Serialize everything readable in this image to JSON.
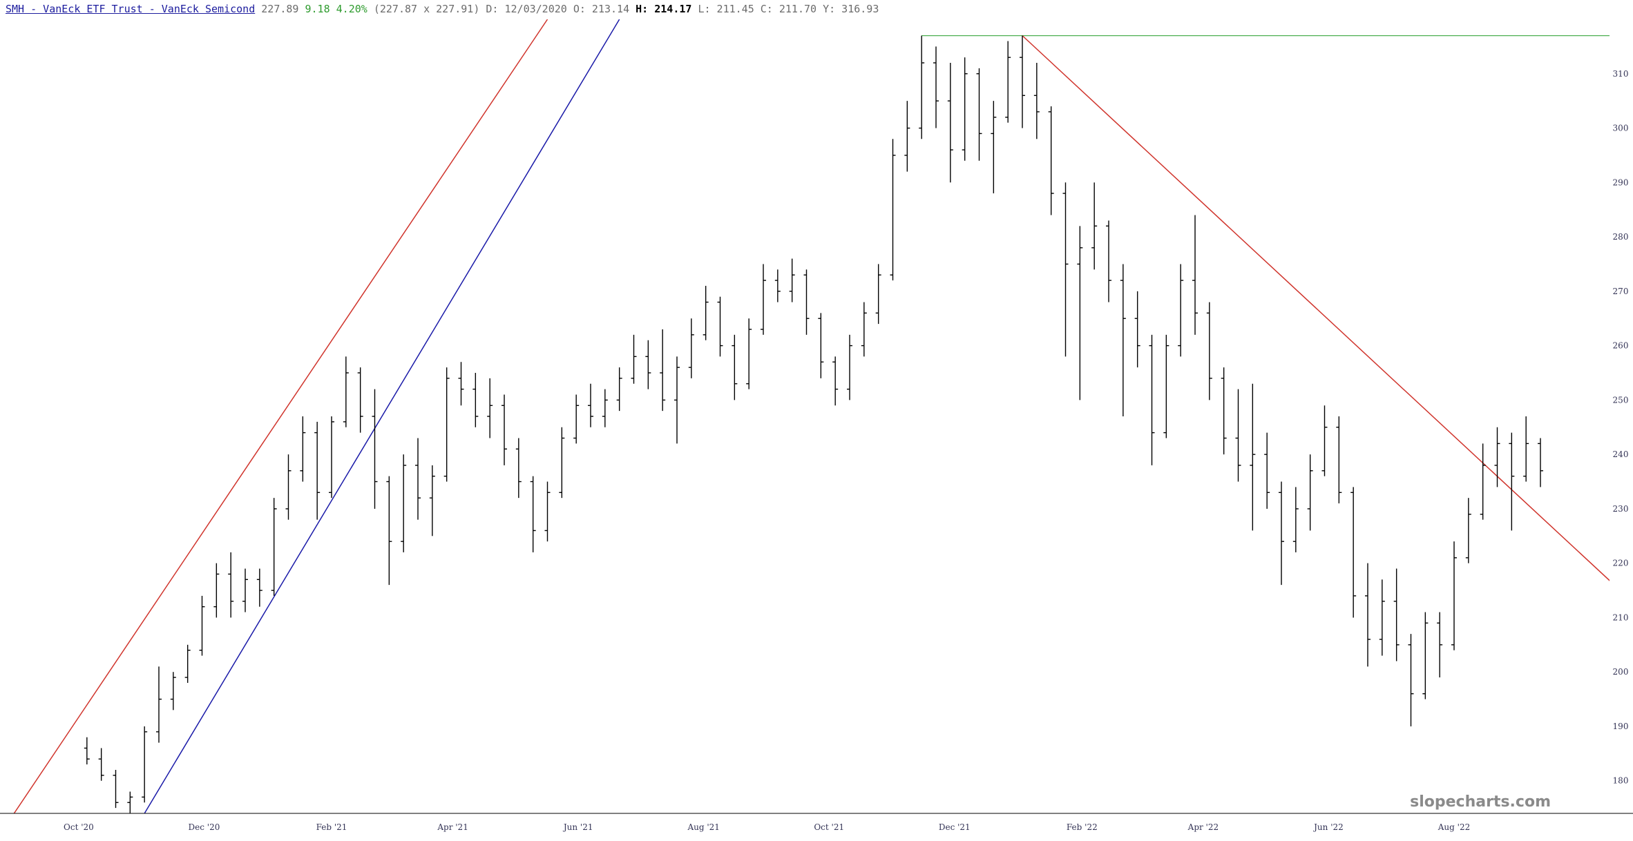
{
  "header": {
    "symbol_link": "SMH - VanEck ETF Trust - VanEck Semicond",
    "last": "227.89",
    "change": "9.18",
    "change_pct": "4.20%",
    "bid_ask": "(227.87 x 227.91)",
    "date": "D: 12/03/2020",
    "open": "O: 213.14",
    "high_label": "H:",
    "high_value": "214.17",
    "low": "L: 211.45",
    "close": "C: 211.70",
    "y": "Y: 316.93"
  },
  "watermark": "slopecharts.com",
  "colors": {
    "bars": "#000000",
    "upper_channel": "#d0342c",
    "lower_channel": "#1a1aa8",
    "downtrend": "#d0342c",
    "high_line": "#4caf50",
    "axis": "#000000",
    "tick_text": "#333355"
  },
  "chart_data": {
    "type": "ohlc",
    "interval": "weekly",
    "x_range": [
      "2020-09-28",
      "2022-09-12"
    ],
    "y_range": [
      174,
      320
    ],
    "y_ticks": [
      180,
      190,
      200,
      210,
      220,
      230,
      240,
      250,
      260,
      270,
      280,
      290,
      300,
      310
    ],
    "x_ticks": [
      {
        "date": "2020-10-01",
        "label": "Oct '20"
      },
      {
        "date": "2020-12-01",
        "label": "Dec '20"
      },
      {
        "date": "2021-02-01",
        "label": "Feb '21"
      },
      {
        "date": "2021-04-01",
        "label": "Apr '21"
      },
      {
        "date": "2021-06-01",
        "label": "Jun '21"
      },
      {
        "date": "2021-08-01",
        "label": "Aug '21"
      },
      {
        "date": "2021-10-01",
        "label": "Oct '21"
      },
      {
        "date": "2021-12-01",
        "label": "Dec '21"
      },
      {
        "date": "2022-02-01",
        "label": "Feb '22"
      },
      {
        "date": "2022-04-01",
        "label": "Apr '22"
      },
      {
        "date": "2022-06-01",
        "label": "Jun '22"
      },
      {
        "date": "2022-08-01",
        "label": "Aug '22"
      }
    ],
    "bars": [
      {
        "date": "2020-10-05",
        "o": 186,
        "h": 188,
        "l": 183,
        "c": 184
      },
      {
        "date": "2020-10-12",
        "o": 184,
        "h": 186,
        "l": 180,
        "c": 181
      },
      {
        "date": "2020-10-19",
        "o": 181,
        "h": 182,
        "l": 175,
        "c": 176
      },
      {
        "date": "2020-10-26",
        "o": 176,
        "h": 178,
        "l": 174,
        "c": 177
      },
      {
        "date": "2020-11-02",
        "o": 177,
        "h": 190,
        "l": 176,
        "c": 189
      },
      {
        "date": "2020-11-09",
        "o": 189,
        "h": 201,
        "l": 187,
        "c": 195
      },
      {
        "date": "2020-11-16",
        "o": 195,
        "h": 200,
        "l": 193,
        "c": 199
      },
      {
        "date": "2020-11-23",
        "o": 199,
        "h": 205,
        "l": 198,
        "c": 204
      },
      {
        "date": "2020-11-30",
        "o": 204,
        "h": 214,
        "l": 203,
        "c": 212
      },
      {
        "date": "2020-12-07",
        "o": 212,
        "h": 220,
        "l": 210,
        "c": 218
      },
      {
        "date": "2020-12-14",
        "o": 218,
        "h": 222,
        "l": 210,
        "c": 213
      },
      {
        "date": "2020-12-21",
        "o": 213,
        "h": 219,
        "l": 211,
        "c": 217
      },
      {
        "date": "2020-12-28",
        "o": 217,
        "h": 219,
        "l": 212,
        "c": 215
      },
      {
        "date": "2021-01-04",
        "o": 215,
        "h": 232,
        "l": 214,
        "c": 230
      },
      {
        "date": "2021-01-11",
        "o": 230,
        "h": 240,
        "l": 228,
        "c": 237
      },
      {
        "date": "2021-01-18",
        "o": 237,
        "h": 247,
        "l": 235,
        "c": 244
      },
      {
        "date": "2021-01-25",
        "o": 244,
        "h": 246,
        "l": 228,
        "c": 233
      },
      {
        "date": "2021-02-01",
        "o": 233,
        "h": 247,
        "l": 232,
        "c": 246
      },
      {
        "date": "2021-02-08",
        "o": 246,
        "h": 258,
        "l": 245,
        "c": 255
      },
      {
        "date": "2021-02-15",
        "o": 255,
        "h": 256,
        "l": 244,
        "c": 247
      },
      {
        "date": "2021-02-22",
        "o": 247,
        "h": 252,
        "l": 230,
        "c": 235
      },
      {
        "date": "2021-03-01",
        "o": 235,
        "h": 236,
        "l": 216,
        "c": 224
      },
      {
        "date": "2021-03-08",
        "o": 224,
        "h": 240,
        "l": 222,
        "c": 238
      },
      {
        "date": "2021-03-15",
        "o": 238,
        "h": 243,
        "l": 228,
        "c": 232
      },
      {
        "date": "2021-03-22",
        "o": 232,
        "h": 238,
        "l": 225,
        "c": 236
      },
      {
        "date": "2021-03-29",
        "o": 236,
        "h": 256,
        "l": 235,
        "c": 254
      },
      {
        "date": "2021-04-05",
        "o": 254,
        "h": 257,
        "l": 249,
        "c": 252
      },
      {
        "date": "2021-04-12",
        "o": 252,
        "h": 255,
        "l": 245,
        "c": 247
      },
      {
        "date": "2021-04-19",
        "o": 247,
        "h": 254,
        "l": 243,
        "c": 249
      },
      {
        "date": "2021-04-26",
        "o": 249,
        "h": 251,
        "l": 238,
        "c": 241
      },
      {
        "date": "2021-05-03",
        "o": 241,
        "h": 243,
        "l": 232,
        "c": 235
      },
      {
        "date": "2021-05-10",
        "o": 235,
        "h": 236,
        "l": 222,
        "c": 226
      },
      {
        "date": "2021-05-17",
        "o": 226,
        "h": 235,
        "l": 224,
        "c": 233
      },
      {
        "date": "2021-05-24",
        "o": 233,
        "h": 245,
        "l": 232,
        "c": 243
      },
      {
        "date": "2021-05-31",
        "o": 243,
        "h": 251,
        "l": 242,
        "c": 249
      },
      {
        "date": "2021-06-07",
        "o": 249,
        "h": 253,
        "l": 245,
        "c": 247
      },
      {
        "date": "2021-06-14",
        "o": 247,
        "h": 252,
        "l": 245,
        "c": 250
      },
      {
        "date": "2021-06-21",
        "o": 250,
        "h": 256,
        "l": 248,
        "c": 254
      },
      {
        "date": "2021-06-28",
        "o": 254,
        "h": 262,
        "l": 253,
        "c": 258
      },
      {
        "date": "2021-07-05",
        "o": 258,
        "h": 261,
        "l": 252,
        "c": 255
      },
      {
        "date": "2021-07-12",
        "o": 255,
        "h": 263,
        "l": 248,
        "c": 250
      },
      {
        "date": "2021-07-19",
        "o": 250,
        "h": 258,
        "l": 242,
        "c": 256
      },
      {
        "date": "2021-07-26",
        "o": 256,
        "h": 265,
        "l": 254,
        "c": 262
      },
      {
        "date": "2021-08-02",
        "o": 262,
        "h": 271,
        "l": 261,
        "c": 268
      },
      {
        "date": "2021-08-09",
        "o": 268,
        "h": 269,
        "l": 258,
        "c": 260
      },
      {
        "date": "2021-08-16",
        "o": 260,
        "h": 262,
        "l": 250,
        "c": 253
      },
      {
        "date": "2021-08-23",
        "o": 253,
        "h": 265,
        "l": 252,
        "c": 263
      },
      {
        "date": "2021-08-30",
        "o": 263,
        "h": 275,
        "l": 262,
        "c": 272
      },
      {
        "date": "2021-09-06",
        "o": 272,
        "h": 274,
        "l": 268,
        "c": 270
      },
      {
        "date": "2021-09-13",
        "o": 270,
        "h": 276,
        "l": 268,
        "c": 273
      },
      {
        "date": "2021-09-20",
        "o": 273,
        "h": 274,
        "l": 262,
        "c": 265
      },
      {
        "date": "2021-09-27",
        "o": 265,
        "h": 266,
        "l": 254,
        "c": 257
      },
      {
        "date": "2021-10-04",
        "o": 257,
        "h": 258,
        "l": 249,
        "c": 252
      },
      {
        "date": "2021-10-11",
        "o": 252,
        "h": 262,
        "l": 250,
        "c": 260
      },
      {
        "date": "2021-10-18",
        "o": 260,
        "h": 268,
        "l": 258,
        "c": 266
      },
      {
        "date": "2021-10-25",
        "o": 266,
        "h": 275,
        "l": 264,
        "c": 273
      },
      {
        "date": "2021-11-01",
        "o": 273,
        "h": 298,
        "l": 272,
        "c": 295
      },
      {
        "date": "2021-11-08",
        "o": 295,
        "h": 305,
        "l": 292,
        "c": 300
      },
      {
        "date": "2021-11-15",
        "o": 300,
        "h": 317,
        "l": 298,
        "c": 312
      },
      {
        "date": "2021-11-22",
        "o": 312,
        "h": 315,
        "l": 300,
        "c": 305
      },
      {
        "date": "2021-11-29",
        "o": 305,
        "h": 312,
        "l": 290,
        "c": 296
      },
      {
        "date": "2021-12-06",
        "o": 296,
        "h": 313,
        "l": 294,
        "c": 310
      },
      {
        "date": "2021-12-13",
        "o": 310,
        "h": 311,
        "l": 294,
        "c": 299
      },
      {
        "date": "2021-12-20",
        "o": 299,
        "h": 305,
        "l": 288,
        "c": 302
      },
      {
        "date": "2021-12-27",
        "o": 302,
        "h": 316,
        "l": 301,
        "c": 313
      },
      {
        "date": "2022-01-03",
        "o": 313,
        "h": 317,
        "l": 300,
        "c": 306
      },
      {
        "date": "2022-01-10",
        "o": 306,
        "h": 312,
        "l": 298,
        "c": 303
      },
      {
        "date": "2022-01-17",
        "o": 303,
        "h": 304,
        "l": 284,
        "c": 288
      },
      {
        "date": "2022-01-24",
        "o": 288,
        "h": 290,
        "l": 258,
        "c": 275
      },
      {
        "date": "2022-01-31",
        "o": 275,
        "h": 282,
        "l": 250,
        "c": 278
      },
      {
        "date": "2022-02-07",
        "o": 278,
        "h": 290,
        "l": 274,
        "c": 282
      },
      {
        "date": "2022-02-14",
        "o": 282,
        "h": 283,
        "l": 268,
        "c": 272
      },
      {
        "date": "2022-02-21",
        "o": 272,
        "h": 275,
        "l": 247,
        "c": 265
      },
      {
        "date": "2022-02-28",
        "o": 265,
        "h": 270,
        "l": 256,
        "c": 260
      },
      {
        "date": "2022-03-07",
        "o": 260,
        "h": 262,
        "l": 238,
        "c": 244
      },
      {
        "date": "2022-03-14",
        "o": 244,
        "h": 262,
        "l": 243,
        "c": 260
      },
      {
        "date": "2022-03-21",
        "o": 260,
        "h": 275,
        "l": 258,
        "c": 272
      },
      {
        "date": "2022-03-28",
        "o": 272,
        "h": 284,
        "l": 262,
        "c": 266
      },
      {
        "date": "2022-04-04",
        "o": 266,
        "h": 268,
        "l": 250,
        "c": 254
      },
      {
        "date": "2022-04-11",
        "o": 254,
        "h": 256,
        "l": 240,
        "c": 243
      },
      {
        "date": "2022-04-18",
        "o": 243,
        "h": 252,
        "l": 235,
        "c": 238
      },
      {
        "date": "2022-04-25",
        "o": 238,
        "h": 253,
        "l": 226,
        "c": 240
      },
      {
        "date": "2022-05-02",
        "o": 240,
        "h": 244,
        "l": 230,
        "c": 233
      },
      {
        "date": "2022-05-09",
        "o": 233,
        "h": 235,
        "l": 216,
        "c": 224
      },
      {
        "date": "2022-05-16",
        "o": 224,
        "h": 234,
        "l": 222,
        "c": 230
      },
      {
        "date": "2022-05-23",
        "o": 230,
        "h": 240,
        "l": 226,
        "c": 237
      },
      {
        "date": "2022-05-30",
        "o": 237,
        "h": 249,
        "l": 236,
        "c": 245
      },
      {
        "date": "2022-06-06",
        "o": 245,
        "h": 247,
        "l": 231,
        "c": 233
      },
      {
        "date": "2022-06-13",
        "o": 233,
        "h": 234,
        "l": 210,
        "c": 214
      },
      {
        "date": "2022-06-20",
        "o": 214,
        "h": 220,
        "l": 201,
        "c": 206
      },
      {
        "date": "2022-06-27",
        "o": 206,
        "h": 217,
        "l": 203,
        "c": 213
      },
      {
        "date": "2022-07-04",
        "o": 213,
        "h": 219,
        "l": 202,
        "c": 205
      },
      {
        "date": "2022-07-11",
        "o": 205,
        "h": 207,
        "l": 190,
        "c": 196
      },
      {
        "date": "2022-07-18",
        "o": 196,
        "h": 211,
        "l": 195,
        "c": 209
      },
      {
        "date": "2022-07-25",
        "o": 209,
        "h": 211,
        "l": 199,
        "c": 205
      },
      {
        "date": "2022-08-01",
        "o": 205,
        "h": 224,
        "l": 204,
        "c": 221
      },
      {
        "date": "2022-08-08",
        "o": 221,
        "h": 232,
        "l": 220,
        "c": 229
      },
      {
        "date": "2022-08-15",
        "o": 229,
        "h": 242,
        "l": 228,
        "c": 238
      },
      {
        "date": "2022-08-22",
        "o": 238,
        "h": 245,
        "l": 234,
        "c": 242
      },
      {
        "date": "2022-08-29",
        "o": 242,
        "h": 244,
        "l": 226,
        "c": 236
      },
      {
        "date": "2022-09-05",
        "o": 236,
        "h": 247,
        "l": 235,
        "c": 242
      },
      {
        "date": "2022-09-12",
        "o": 242,
        "h": 243,
        "l": 234,
        "c": 237
      }
    ],
    "trendlines": [
      {
        "kind": "upper-channel",
        "color": "#d0342c",
        "points": [
          {
            "date": "2020-09-28",
            "value": 190
          },
          {
            "date": "2021-05-17",
            "value": 320
          }
        ]
      },
      {
        "date_note": "",
        "kind": "lower-channel",
        "color": "#1a1aa8",
        "points": [
          {
            "date": "2020-11-02",
            "value": 174
          },
          {
            "date": "2021-06-21",
            "value": 320
          }
        ]
      },
      {
        "kind": "downtrend",
        "color": "#d0342c",
        "points": [
          {
            "date": "2022-01-03",
            "value": 317
          },
          {
            "date": "2022-09-28",
            "value": 223
          }
        ]
      }
    ],
    "horizontal_lines": [
      {
        "kind": "high",
        "color": "#4caf50",
        "value": 317,
        "from_date": "2021-11-15"
      }
    ]
  }
}
